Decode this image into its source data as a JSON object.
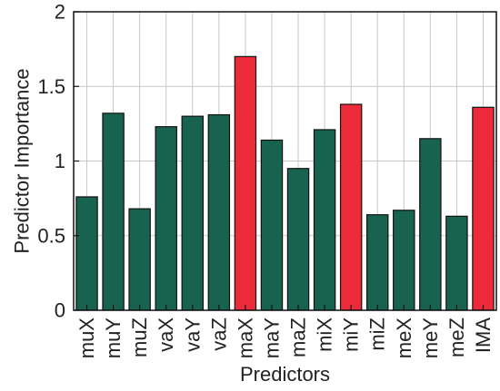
{
  "chart_data": {
    "type": "bar",
    "categories": [
      "muX",
      "muY",
      "muZ",
      "vaX",
      "vaY",
      "vaZ",
      "maX",
      "maY",
      "maZ",
      "miX",
      "miY",
      "miZ",
      "meX",
      "meY",
      "meZ",
      "IMA"
    ],
    "values": [
      0.76,
      1.32,
      0.68,
      1.23,
      1.3,
      1.31,
      1.7,
      1.14,
      0.95,
      1.21,
      1.38,
      0.64,
      0.67,
      1.15,
      0.63,
      1.36
    ],
    "highlighted": [
      false,
      false,
      false,
      false,
      false,
      false,
      true,
      false,
      false,
      false,
      true,
      false,
      false,
      false,
      false,
      true
    ],
    "xlabel": "Predictors",
    "ylabel": "Predictor Importance",
    "ylim": [
      0,
      2
    ],
    "yticks": [
      0,
      0.5,
      1,
      1.5,
      2
    ],
    "ytick_labels": [
      "0",
      "0.5",
      "1",
      "1.5",
      "2"
    ],
    "grid": true,
    "colors": {
      "default_bar": "#176350",
      "highlight_bar": "#ec2a3a",
      "grid": "#c8c8c8",
      "axis": "#111111"
    }
  }
}
